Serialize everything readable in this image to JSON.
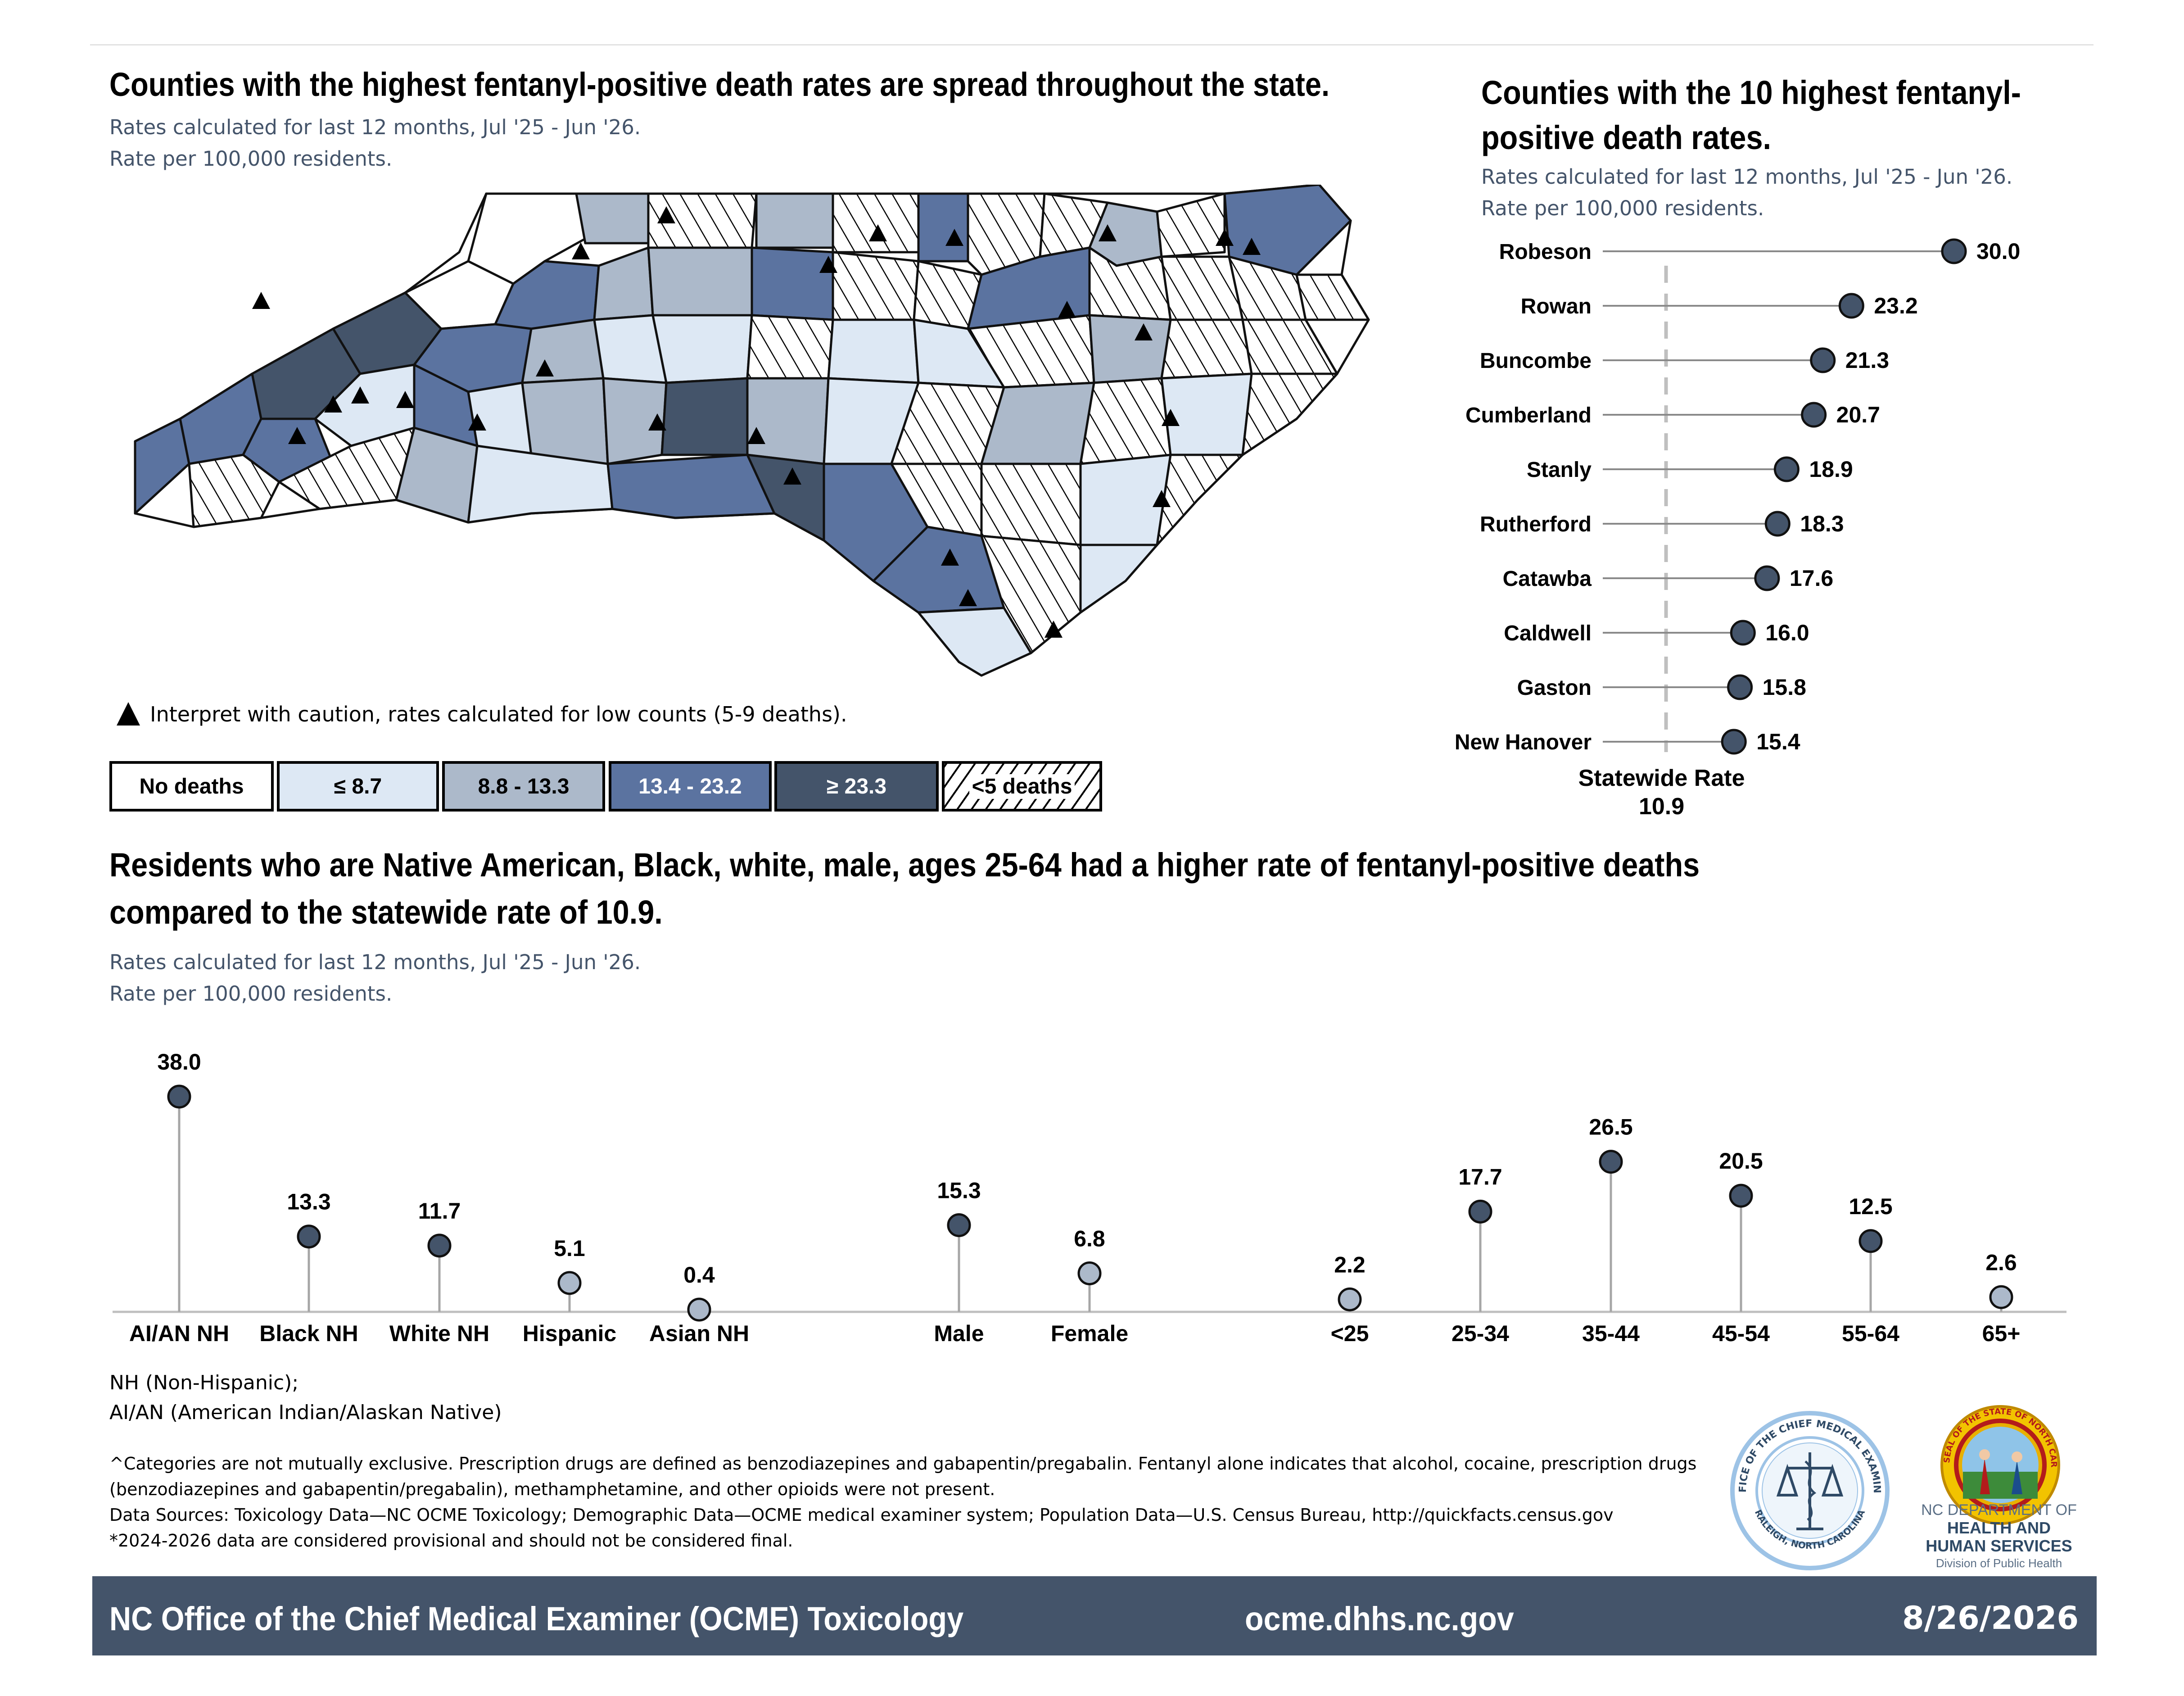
{
  "map_section": {
    "title": "Counties with the highest fentanyl-positive death rates are spread throughout the state.",
    "subtitle_line1": "Rates calculated for last 12 months, Jul '25 - Jun '26.",
    "subtitle_line2": "Rate per 100,000 residents.",
    "caution_note": "Interpret with caution, rates calculated for low counts (5-9 deaths).",
    "legend": [
      {
        "label": "No deaths",
        "fill": "#ffffff",
        "text_color": "#000000"
      },
      {
        "label": "≤ 8.7",
        "fill": "#dde8f4",
        "text_color": "#000000"
      },
      {
        "label": "8.8 - 13.3",
        "fill": "#acb9ca",
        "text_color": "#000000"
      },
      {
        "label": "13.4 - 23.2",
        "fill": "#5b73a0",
        "text_color": "#ffffff"
      },
      {
        "label": "≥ 23.3",
        "fill": "#44546a",
        "text_color": "#ffffff"
      },
      {
        "label": "<5 deaths",
        "fill": "hatch",
        "text_color": "#000000"
      }
    ]
  },
  "top10_section": {
    "title_line1": "Counties with the 10 highest fentanyl-",
    "title_line2": "positive death rates.",
    "subtitle_line1": "Rates calculated for last 12 months, Jul '25 - Jun '26.",
    "subtitle_line2": "Rate per 100,000 residents.",
    "statewide_label_line1": "Statewide Rate",
    "statewide_label_line2": "10.9"
  },
  "demo_section": {
    "title_line1": "Residents who are Native American, Black, white, male, ages 25-64 had a higher rate of fentanyl-positive deaths",
    "title_line2": "compared to the statewide rate of 10.9.",
    "subtitle_line1": "Rates calculated for last 12 months, Jul '25 - Jun '26.",
    "subtitle_line2": "Rate per 100,000 residents."
  },
  "chart_data": [
    {
      "type": "lollipop",
      "orientation": "horizontal",
      "categories": [
        "Robeson",
        "Rowan",
        "Buncombe",
        "Cumberland",
        "Stanly",
        "Rutherford",
        "Catawba",
        "Caldwell",
        "Gaston",
        "New Hanover"
      ],
      "values": [
        30.0,
        23.2,
        21.3,
        20.7,
        18.9,
        18.3,
        17.6,
        16.0,
        15.8,
        15.4
      ],
      "value_labels": [
        "30.0",
        "23.2",
        "21.3",
        "20.7",
        "18.9",
        "18.3",
        "17.6",
        "16.0",
        "15.8",
        "15.4"
      ],
      "reference_line": 10.9,
      "xlim": [
        0,
        30
      ],
      "marker_color": "#44546a"
    },
    {
      "type": "lollipop",
      "orientation": "vertical",
      "categories": [
        "AI/AN NH",
        "Black NH",
        "White NH",
        "Hispanic",
        "Asian NH",
        "Male",
        "Female",
        "<25",
        "25-34",
        "35-44",
        "45-54",
        "55-64",
        "65+"
      ],
      "values": [
        38.0,
        13.3,
        11.7,
        5.1,
        0.4,
        15.3,
        6.8,
        2.2,
        17.7,
        26.5,
        20.5,
        12.5,
        2.6
      ],
      "value_labels": [
        "38.0",
        "13.3",
        "11.7",
        "5.1",
        "0.4",
        "15.3",
        "6.8",
        "2.2",
        "17.7",
        "26.5",
        "20.5",
        "12.5",
        "2.6"
      ],
      "groups": [
        [
          0,
          1,
          2,
          3,
          4
        ],
        [
          5,
          6
        ],
        [
          7,
          8,
          9,
          10,
          11,
          12
        ]
      ],
      "above_statewide_color": "#44546a",
      "below_statewide_color": "#acb9ca",
      "statewide_rate": 10.9,
      "ylim": [
        0,
        38
      ]
    }
  ],
  "notes": {
    "nh": "NH (Non-Hispanic);",
    "aian": "AI/AN (American Indian/Alaskan Native)",
    "line1": "^Categories are not mutually exclusive. Prescription drugs are defined as benzodiazepines and gabapentin/pregabalin. Fentanyl alone indicates that alcohol, cocaine, prescription drugs",
    "line2": "(benzodiazepines and gabapentin/pregabalin), methamphetamine, and other opioids were not present.",
    "line3": "Data Sources: Toxicology Data—NC OCME Toxicology; Demographic Data—OCME medical examiner system; Population Data—U.S. Census Bureau, http://quickfacts.census.gov",
    "line4": "*2024-2026 data are considered provisional and should not be considered final."
  },
  "logos": {
    "ocme_seal_text": "OFFICE OF THE CHIEF MEDICAL EXAMINER",
    "ocme_seal_bottom": "RALEIGH, NORTH CAROLINA",
    "dhhs_line1": "NC DEPARTMENT OF",
    "dhhs_line2": "HEALTH AND",
    "dhhs_line3": "HUMAN SERVICES",
    "dhhs_line4": "Division of Public Health",
    "state_seal_text": "GREAT SEAL OF THE STATE OF NORTH CAROLINA"
  },
  "footer": {
    "left": "NC Office of the Chief Medical Examiner (OCME) Toxicology",
    "center": "ocme.dhhs.nc.gov",
    "right": "8/26/2026",
    "background": "#44546a"
  }
}
